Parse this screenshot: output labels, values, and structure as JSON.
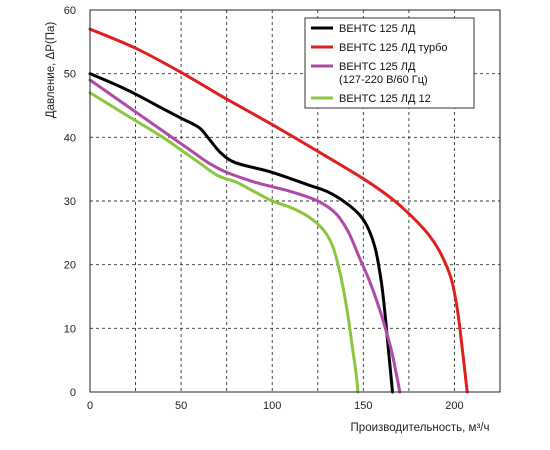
{
  "chart_data": {
    "type": "line",
    "title": "",
    "xlabel": "Производительность, м³/ч",
    "ylabel": "Давление, ΔР(Па)",
    "xlim": [
      0,
      225
    ],
    "ylim": [
      0,
      60
    ],
    "x_ticks": [
      "0",
      "50",
      "100",
      "150",
      "200"
    ],
    "y_ticks": [
      "0",
      "10",
      "20",
      "30",
      "40",
      "50",
      "60"
    ],
    "grid": true,
    "legend_position": "top-right",
    "series": [
      {
        "name": "ВЕНТС 125 ЛД",
        "color": "#000000",
        "points": [
          [
            0,
            50
          ],
          [
            20,
            47.5
          ],
          [
            40,
            44.5
          ],
          [
            50,
            43
          ],
          [
            60,
            41.5
          ],
          [
            66,
            39.5
          ],
          [
            72,
            37.5
          ],
          [
            80,
            36
          ],
          [
            100,
            34.5
          ],
          [
            120,
            32.5
          ],
          [
            130,
            31.5
          ],
          [
            140,
            29.8
          ],
          [
            148,
            27.8
          ],
          [
            153,
            25.5
          ],
          [
            157,
            22
          ],
          [
            160,
            17
          ],
          [
            162,
            12
          ],
          [
            164,
            6
          ],
          [
            166,
            0
          ]
        ]
      },
      {
        "name": "ВЕНТС 125 ЛД турбо",
        "color": "#e0201e",
        "points": [
          [
            0,
            57
          ],
          [
            25,
            54
          ],
          [
            50,
            50.2
          ],
          [
            75,
            46
          ],
          [
            100,
            42
          ],
          [
            125,
            37.8
          ],
          [
            150,
            33.5
          ],
          [
            165,
            30.5
          ],
          [
            175,
            28
          ],
          [
            185,
            25
          ],
          [
            192,
            22
          ],
          [
            198,
            18
          ],
          [
            201,
            14
          ],
          [
            203,
            10
          ],
          [
            205,
            5
          ],
          [
            207,
            0
          ]
        ]
      },
      {
        "name": "ВЕНТС 125 ЛД\n(127-220 В/60 Гц)",
        "color": "#b04aa6",
        "points": [
          [
            0,
            49
          ],
          [
            20,
            45
          ],
          [
            40,
            41
          ],
          [
            55,
            38
          ],
          [
            65,
            36
          ],
          [
            75,
            34.5
          ],
          [
            90,
            33
          ],
          [
            110,
            31.5
          ],
          [
            125,
            30
          ],
          [
            135,
            28
          ],
          [
            142,
            25
          ],
          [
            148,
            21
          ],
          [
            154,
            17
          ],
          [
            160,
            12
          ],
          [
            165,
            7
          ],
          [
            168,
            3
          ],
          [
            170,
            0
          ]
        ]
      },
      {
        "name": "ВЕНТС 125 ЛД 12",
        "color": "#8cc63f",
        "points": [
          [
            0,
            47
          ],
          [
            20,
            43.5
          ],
          [
            40,
            40
          ],
          [
            50,
            38
          ],
          [
            60,
            36
          ],
          [
            70,
            34
          ],
          [
            80,
            33
          ],
          [
            90,
            31.5
          ],
          [
            100,
            30
          ],
          [
            110,
            29
          ],
          [
            120,
            27.5
          ],
          [
            128,
            25.5
          ],
          [
            133,
            23
          ],
          [
            137,
            19
          ],
          [
            141,
            13
          ],
          [
            144,
            7
          ],
          [
            146,
            3
          ],
          [
            147,
            0
          ]
        ]
      }
    ]
  }
}
